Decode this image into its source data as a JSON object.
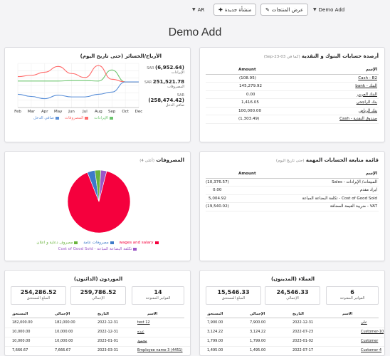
{
  "topbar": {
    "lang": "AR",
    "new_label": "منشأة جديدة",
    "products_label": "عرض المنتجات",
    "company": "Demo Add"
  },
  "page_title": "Demo Add",
  "banks": {
    "title": "أرصدة حسابات البنوك و النقدية",
    "subtitle": "(كما في 03-Sep-23)",
    "col_name": "الإسم",
    "col_amount": "Amount",
    "rows": [
      {
        "name": "Cash - B2",
        "amount": "(108.95)"
      },
      {
        "name": "البنك - bank",
        "amount": "145,279.92"
      },
      {
        "name": "البنك العربي",
        "amount": "0.00"
      },
      {
        "name": "بنك الراجحي",
        "amount": "1,416.05"
      },
      {
        "name": "بنك الرياض",
        "amount": "100,000.00"
      },
      {
        "name": "صندوق النقدية - Cash",
        "amount": "(1,303.49)"
      }
    ]
  },
  "profit": {
    "title": "الأرباح/الخسائر (حتى تاريخ اليوم)",
    "stats": [
      {
        "cur": "SAR",
        "value": "(6,952.64)",
        "label": "الإيرادات"
      },
      {
        "cur": "SAR",
        "value": "251,521.78",
        "label": "المصروفات"
      },
      {
        "cur": "SAR",
        "value": "(258,474.42)",
        "label": "صافي الدخل"
      }
    ],
    "legend": [
      "الإيرادات",
      "المصروفات",
      "صافي الدخل"
    ]
  },
  "watchlist": {
    "title": "قائمة متابعة الحسابات المهمة",
    "subtitle": "(حتى تاريخ اليوم)",
    "col_name": "الإسم",
    "col_amount": "Amount",
    "rows": [
      {
        "name": "المبيعات/ الإيرادات - Sales",
        "amount": "(10,376.57)"
      },
      {
        "name": "ايراد مقدم",
        "amount": "0.00"
      },
      {
        "name": "Cost of Good Sold - تكلفة البضاعة المباعة",
        "amount": "5,004.92"
      },
      {
        "name": "VAT - ضريبة القيمة المضافة",
        "amount": "(19,540.02)"
      }
    ]
  },
  "expenses": {
    "title": "المصروفات",
    "subtitle": "(أعلى 4)",
    "legend": [
      "wages and salary",
      "مصروفات عامة",
      "مصروف دعاية و اعلان",
      "تكلفة البضاعة المباعة - Cost of Good Sold"
    ]
  },
  "customers": {
    "title": "العملاء (المدينون)",
    "stats": [
      {
        "value": "6",
        "label": "الفواتير المفتوحة"
      },
      {
        "value": "24,546.33",
        "label": "الإجمالي"
      },
      {
        "value": "15,546.33",
        "label": "المبلغ المستحق"
      }
    ],
    "cols": {
      "name": "الاسم",
      "date": "التاريخ",
      "total": "الإجمالي",
      "due": "المستحق"
    },
    "rows": [
      {
        "name": "علي",
        "date": "2022-12-31",
        "total": "7,900.00",
        "due": "7,900.00"
      },
      {
        "name": "Customer-10",
        "date": "2022-07-23",
        "total": "3,124.22",
        "due": "3,124.22"
      },
      {
        "name": "Customer",
        "date": "2023-01-02",
        "total": "1,799.00",
        "due": "1,799.00"
      },
      {
        "name": "Customer 4",
        "date": "2022-07-17",
        "total": "1,495.00",
        "due": "1,495.00"
      }
    ]
  },
  "suppliers": {
    "title": "الموردون (الدائنون)",
    "stats": [
      {
        "value": "14",
        "label": "الفواتير المفتوحة"
      },
      {
        "value": "259,786.52",
        "label": "الإجمالي"
      },
      {
        "value": "254,286.52",
        "label": "المبلغ المستحق"
      }
    ],
    "cols": {
      "name": "الاسم",
      "date": "التاريخ",
      "total": "الإجمالي",
      "due": "المستحق"
    },
    "rows": [
      {
        "name": "test 12",
        "date": "2022-12-31",
        "total": "182,000.00",
        "due": "182,000.00"
      },
      {
        "name": "عبده",
        "date": "2022-12-31",
        "total": "10,000.00",
        "due": "10,000.00"
      },
      {
        "name": "محمود",
        "date": "2023-01-01",
        "total": "10,000.00",
        "due": "10,000.00"
      },
      {
        "name": "Employee name 3 (4451)",
        "date": "2023-03-31",
        "total": "7,666.67",
        "due": "7,666.67"
      }
    ]
  },
  "chart_data": [
    {
      "type": "line",
      "categories": [
        "Feb",
        "Mar",
        "Apr",
        "May",
        "Jun",
        "Jul",
        "Aug",
        "Sep",
        "Oct",
        "Dec"
      ],
      "series": [
        {
          "name": "الإيرادات",
          "values": [
            60,
            60,
            60,
            60,
            61,
            61,
            60,
            85,
            58,
            58
          ]
        },
        {
          "name": "المصروفات",
          "values": [
            70,
            73,
            80,
            93,
            77,
            68,
            95,
            64,
            58,
            58
          ]
        },
        {
          "name": "صافي الدخل",
          "values": [
            30,
            25,
            20,
            28,
            24,
            24,
            30,
            35,
            58,
            58
          ]
        }
      ]
    },
    {
      "type": "pie",
      "categories": [
        "wages and salary",
        "مصروفات عامة",
        "مصروف دعاية و اعلان",
        "تكلفة البضاعة المباعة - Cost of Good Sold"
      ],
      "values": [
        90,
        4,
        3,
        3
      ]
    }
  ],
  "colors": {
    "revenue": "#6cc56e",
    "expenses": "#ff6b6b",
    "net": "#5a8fd8",
    "pie_red": "#f5003d",
    "pie_blue": "#3d7ac9",
    "pie_green": "#6ab43d",
    "pie_purple": "#9b57c7"
  }
}
